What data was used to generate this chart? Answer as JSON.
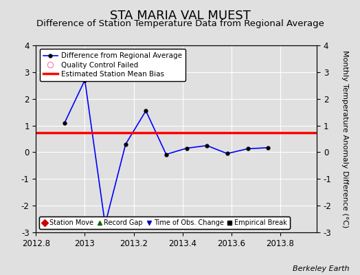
{
  "title": "STA MARIA VAL MUEST",
  "subtitle": "Difference of Station Temperature Data from Regional Average",
  "ylabel_right": "Monthly Temperature Anomaly Difference (°C)",
  "xlim": [
    2012.8,
    2013.95
  ],
  "ylim": [
    -3,
    4
  ],
  "xticks": [
    2012.8,
    2013.0,
    2013.2,
    2013.4,
    2013.6,
    2013.8
  ],
  "yticks": [
    -3,
    -2,
    -1,
    0,
    1,
    2,
    3,
    4
  ],
  "line_x": [
    2012.917,
    2013.0,
    2013.083,
    2013.167,
    2013.25,
    2013.333,
    2013.417,
    2013.5,
    2013.583,
    2013.667,
    2013.75
  ],
  "line_y": [
    1.1,
    2.7,
    -2.7,
    0.3,
    1.55,
    -0.08,
    0.15,
    0.25,
    -0.05,
    0.13,
    0.17
  ],
  "bias_y": 0.72,
  "bias_x_start": 2012.8,
  "bias_x_end": 2013.95,
  "line_color": "#0000FF",
  "bias_color": "#FF0000",
  "background_color": "#E0E0E0",
  "grid_color": "#FFFFFF",
  "watermark": "Berkeley Earth",
  "title_fontsize": 13,
  "subtitle_fontsize": 9.5,
  "tick_fontsize": 8.5,
  "ylabel_fontsize": 8
}
